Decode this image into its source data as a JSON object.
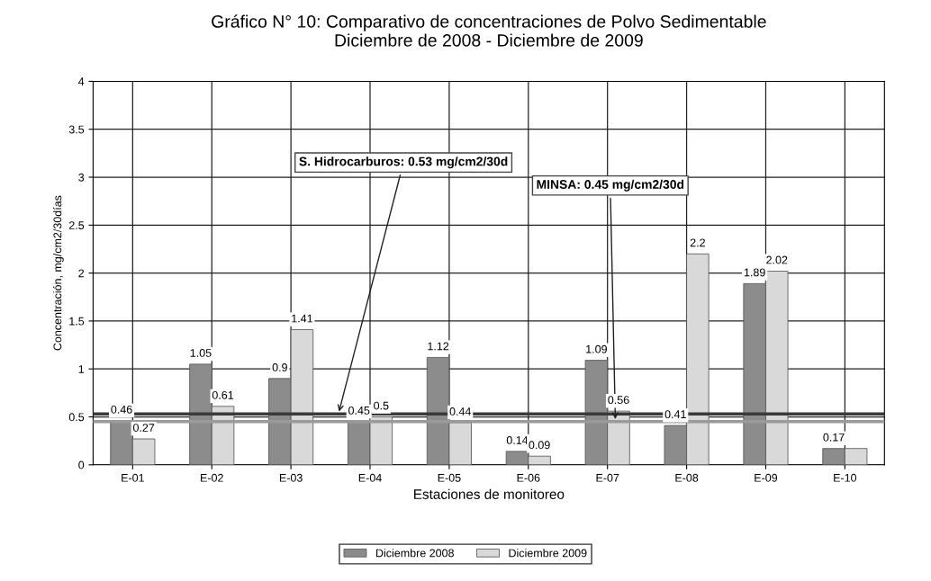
{
  "chart_data": {
    "type": "bar",
    "title": "Gráfico N° 10: Comparativo de concentraciones de Polvo Sedimentable\nDiciembre de 2008 - Diciembre de 2009",
    "xlabel": "Estaciones de monitoreo",
    "ylabel": "Concentración, mg/cm2/30días",
    "categories": [
      "E-01",
      "E-02",
      "E-03",
      "E-04",
      "E-05",
      "E-06",
      "E-07",
      "E-08",
      "E-09",
      "E-10"
    ],
    "series": [
      {
        "name": "Diciembre 2008",
        "color": "#8c8c8c",
        "values": [
          0.46,
          1.05,
          0.9,
          0.45,
          1.12,
          0.14,
          1.09,
          0.41,
          1.89,
          0.17
        ],
        "value_labels": [
          "0.46",
          "1.05",
          "0.9",
          "0.45",
          "1.12",
          "0.14",
          "1.09",
          "0.41",
          "1.89",
          "0.17"
        ]
      },
      {
        "name": "Diciembre 2009",
        "color": "#d9d9d9",
        "values": [
          0.27,
          0.61,
          1.41,
          0.5,
          0.44,
          0.09,
          0.56,
          2.2,
          2.02,
          0.17
        ],
        "value_labels": [
          "0.27",
          "0.61",
          "1.41",
          "0.5",
          "0.44",
          "0.09",
          "0.56",
          "2.2",
          "2.02",
          null
        ]
      }
    ],
    "ylim": [
      0,
      4
    ],
    "yticks": [
      0,
      0.5,
      1,
      1.5,
      2,
      2.5,
      3,
      3.5,
      4
    ],
    "ref_lines": [
      {
        "axis": "y",
        "value": 0.53,
        "label": "S. Hidrocarburos: 0.53 mg/cm2/30d",
        "color": "#3a3a3a"
      },
      {
        "axis": "y",
        "value": 0.45,
        "label": "MINSA: 0.45 mg/cm2/30d",
        "color": "#9a9a9a"
      }
    ],
    "grid": true,
    "legend": "bottom"
  }
}
